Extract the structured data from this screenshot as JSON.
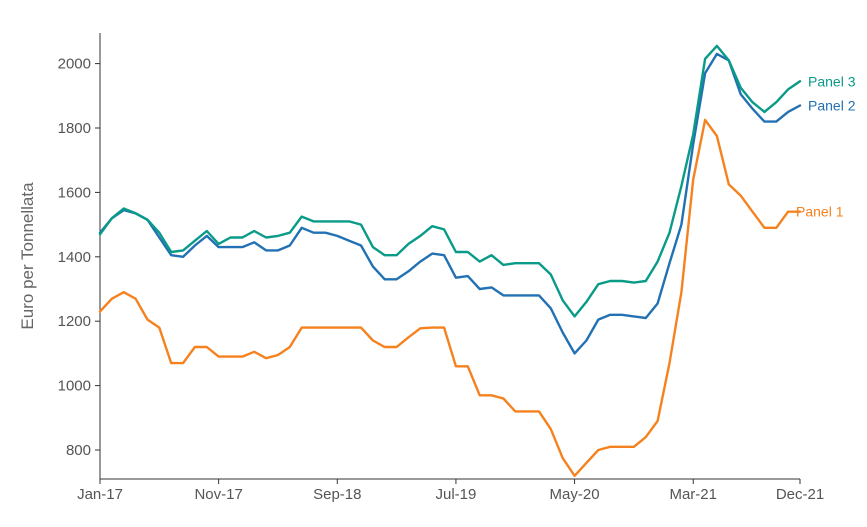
{
  "chart_data": {
    "type": "line",
    "title": "",
    "ylabel": "Euro per Tonnellata",
    "xlabel": "",
    "ylim": [
      710,
      2095
    ],
    "yticks": [
      800,
      1000,
      1200,
      1400,
      1600,
      1800,
      2000
    ],
    "x_tick_labels": [
      "Jan-17",
      "Nov-17",
      "Sep-18",
      "Jul-19",
      "May-20",
      "Mar-21",
      "Dec-21"
    ],
    "x_tick_index": [
      0,
      10,
      20,
      30,
      40,
      50,
      59
    ],
    "x_count": 60,
    "grid": false,
    "series": [
      {
        "name": "Panel 1",
        "color": "#f5821f",
        "values": [
          1230,
          1270,
          1290,
          1270,
          1205,
          1180,
          1070,
          1070,
          1120,
          1120,
          1090,
          1090,
          1090,
          1105,
          1085,
          1095,
          1120,
          1180,
          1180,
          1180,
          1180,
          1180,
          1180,
          1140,
          1120,
          1120,
          1150,
          1178,
          1180,
          1180,
          1060,
          1060,
          970,
          970,
          960,
          920,
          920,
          920,
          865,
          775,
          720,
          760,
          800,
          810,
          810,
          810,
          840,
          890,
          1070,
          1290,
          1640,
          1825,
          1775,
          1625,
          1590,
          1540,
          1490,
          1490,
          1540,
          1540
        ]
      },
      {
        "name": "Panel 2",
        "color": "#2271b3",
        "values": [
          1475,
          1520,
          1545,
          1535,
          1515,
          1460,
          1405,
          1400,
          1435,
          1465,
          1430,
          1430,
          1430,
          1445,
          1420,
          1420,
          1435,
          1490,
          1475,
          1475,
          1465,
          1450,
          1435,
          1370,
          1330,
          1330,
          1355,
          1385,
          1410,
          1405,
          1335,
          1340,
          1300,
          1305,
          1280,
          1280,
          1280,
          1280,
          1240,
          1165,
          1100,
          1140,
          1205,
          1220,
          1220,
          1215,
          1210,
          1255,
          1380,
          1500,
          1750,
          1970,
          2030,
          2010,
          1905,
          1860,
          1820,
          1820,
          1850,
          1870
        ]
      },
      {
        "name": "Panel 3",
        "color": "#099a88",
        "values": [
          1470,
          1520,
          1550,
          1535,
          1515,
          1475,
          1415,
          1420,
          1450,
          1480,
          1440,
          1460,
          1460,
          1480,
          1460,
          1465,
          1475,
          1525,
          1510,
          1510,
          1510,
          1510,
          1500,
          1430,
          1405,
          1405,
          1440,
          1465,
          1495,
          1485,
          1415,
          1415,
          1385,
          1405,
          1375,
          1380,
          1380,
          1380,
          1345,
          1265,
          1215,
          1260,
          1315,
          1325,
          1325,
          1320,
          1325,
          1385,
          1475,
          1620,
          1780,
          2015,
          2055,
          2010,
          1925,
          1880,
          1850,
          1880,
          1920,
          1945
        ]
      }
    ]
  }
}
